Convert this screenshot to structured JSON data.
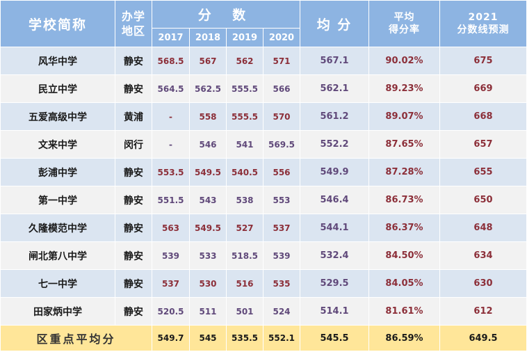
{
  "header": {
    "school": "学校简称",
    "district_line1": "办学",
    "district_line2": "地区",
    "scores": "分 数",
    "years": [
      "2017",
      "2018",
      "2019",
      "2020"
    ],
    "average": "均 分",
    "rate_line1": "平均",
    "rate_line2": "得分率",
    "pred_line1": "2021",
    "pred_line2": "分数线预测"
  },
  "colors": {
    "header_bg": "#8db4e2",
    "row_odd": "#dbe5f1",
    "row_even": "#f2f2f2",
    "footer_bg": "#ffe699",
    "text_red": "#8c2f39",
    "text_purple": "#60497a"
  },
  "rows": [
    {
      "name": "风华中学",
      "district": "静安",
      "scores": [
        "568.5",
        "567",
        "562",
        "571"
      ],
      "avg": "567.1",
      "rate": "90.02%",
      "pred": "675"
    },
    {
      "name": "民立中学",
      "district": "静安",
      "scores": [
        "564.5",
        "562.5",
        "555.5",
        "566"
      ],
      "avg": "562.1",
      "rate": "89.23%",
      "pred": "669"
    },
    {
      "name": "五爱高级中学",
      "district": "黄浦",
      "scores": [
        "-",
        "558",
        "555.5",
        "570"
      ],
      "avg": "561.2",
      "rate": "89.07%",
      "pred": "668"
    },
    {
      "name": "文来中学",
      "district": "闵行",
      "scores": [
        "-",
        "546",
        "541",
        "569.5"
      ],
      "avg": "552.2",
      "rate": "87.65%",
      "pred": "657"
    },
    {
      "name": "彭浦中学",
      "district": "静安",
      "scores": [
        "553.5",
        "549.5",
        "540.5",
        "556"
      ],
      "avg": "549.9",
      "rate": "87.28%",
      "pred": "655"
    },
    {
      "name": "第一中学",
      "district": "静安",
      "scores": [
        "551.5",
        "543",
        "538",
        "553"
      ],
      "avg": "546.4",
      "rate": "86.73%",
      "pred": "650"
    },
    {
      "name": "久隆模范中学",
      "district": "静安",
      "scores": [
        "563",
        "549.5",
        "527",
        "537"
      ],
      "avg": "544.1",
      "rate": "86.37%",
      "pred": "648"
    },
    {
      "name": "闸北第八中学",
      "district": "静安",
      "scores": [
        "539",
        "533",
        "518.5",
        "539"
      ],
      "avg": "532.4",
      "rate": "84.50%",
      "pred": "634"
    },
    {
      "name": "七一中学",
      "district": "静安",
      "scores": [
        "537",
        "530",
        "516",
        "535"
      ],
      "avg": "529.5",
      "rate": "84.05%",
      "pred": "630"
    },
    {
      "name": "田家炳中学",
      "district": "静安",
      "scores": [
        "520.5",
        "511",
        "501",
        "524"
      ],
      "avg": "514.1",
      "rate": "81.61%",
      "pred": "612"
    }
  ],
  "footer": {
    "label": "区重点平均分",
    "scores": [
      "549.7",
      "545",
      "535.5",
      "552.1"
    ],
    "avg": "545.5",
    "rate": "86.59%",
    "pred": "649.5"
  }
}
